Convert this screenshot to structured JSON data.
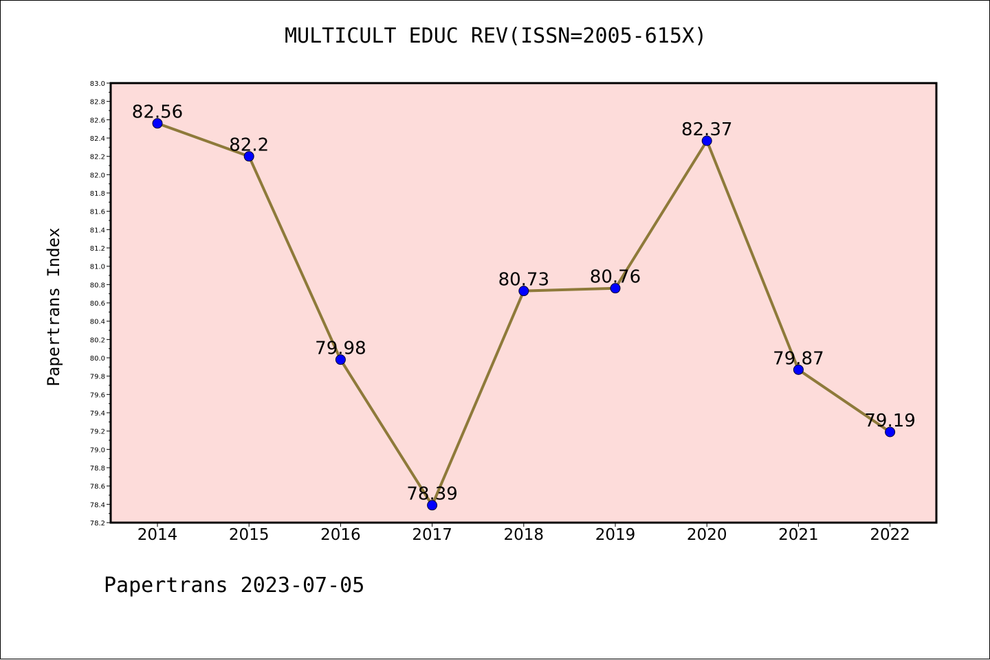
{
  "chart_data": {
    "type": "line",
    "title": "MULTICULT EDUC REV(ISSN=2005-615X)",
    "ylabel": "Papertrans Index",
    "xlabel": "",
    "categories": [
      "2014",
      "2015",
      "2016",
      "2017",
      "2018",
      "2019",
      "2020",
      "2021",
      "2022"
    ],
    "series": [
      {
        "values": [
          82.56,
          82.2,
          79.98,
          78.39,
          80.73,
          80.76,
          82.37,
          79.87,
          79.19
        ]
      }
    ],
    "data_labels": [
      "82.56",
      "82.2",
      "79.98",
      "78.39",
      "80.73",
      "80.76",
      "82.37",
      "79.87",
      "79.19"
    ],
    "ylim": [
      78.2,
      83.0
    ],
    "yticks": [
      "78.2",
      "78.4",
      "78.6",
      "78.8",
      "79.0",
      "79.2",
      "79.4",
      "79.6",
      "79.8",
      "80.0",
      "80.2",
      "80.4",
      "80.6",
      "80.8",
      "81.0",
      "81.2",
      "81.4",
      "81.6",
      "81.8",
      "82.0",
      "82.2",
      "82.4",
      "82.6",
      "82.8",
      "83.0"
    ],
    "grid": false,
    "colors": {
      "plot_background": "#fddcda",
      "line": "#8e7a3a",
      "marker": "#0000ff",
      "frame": "#000000"
    }
  },
  "footer": "Papertrans 2023-07-05"
}
